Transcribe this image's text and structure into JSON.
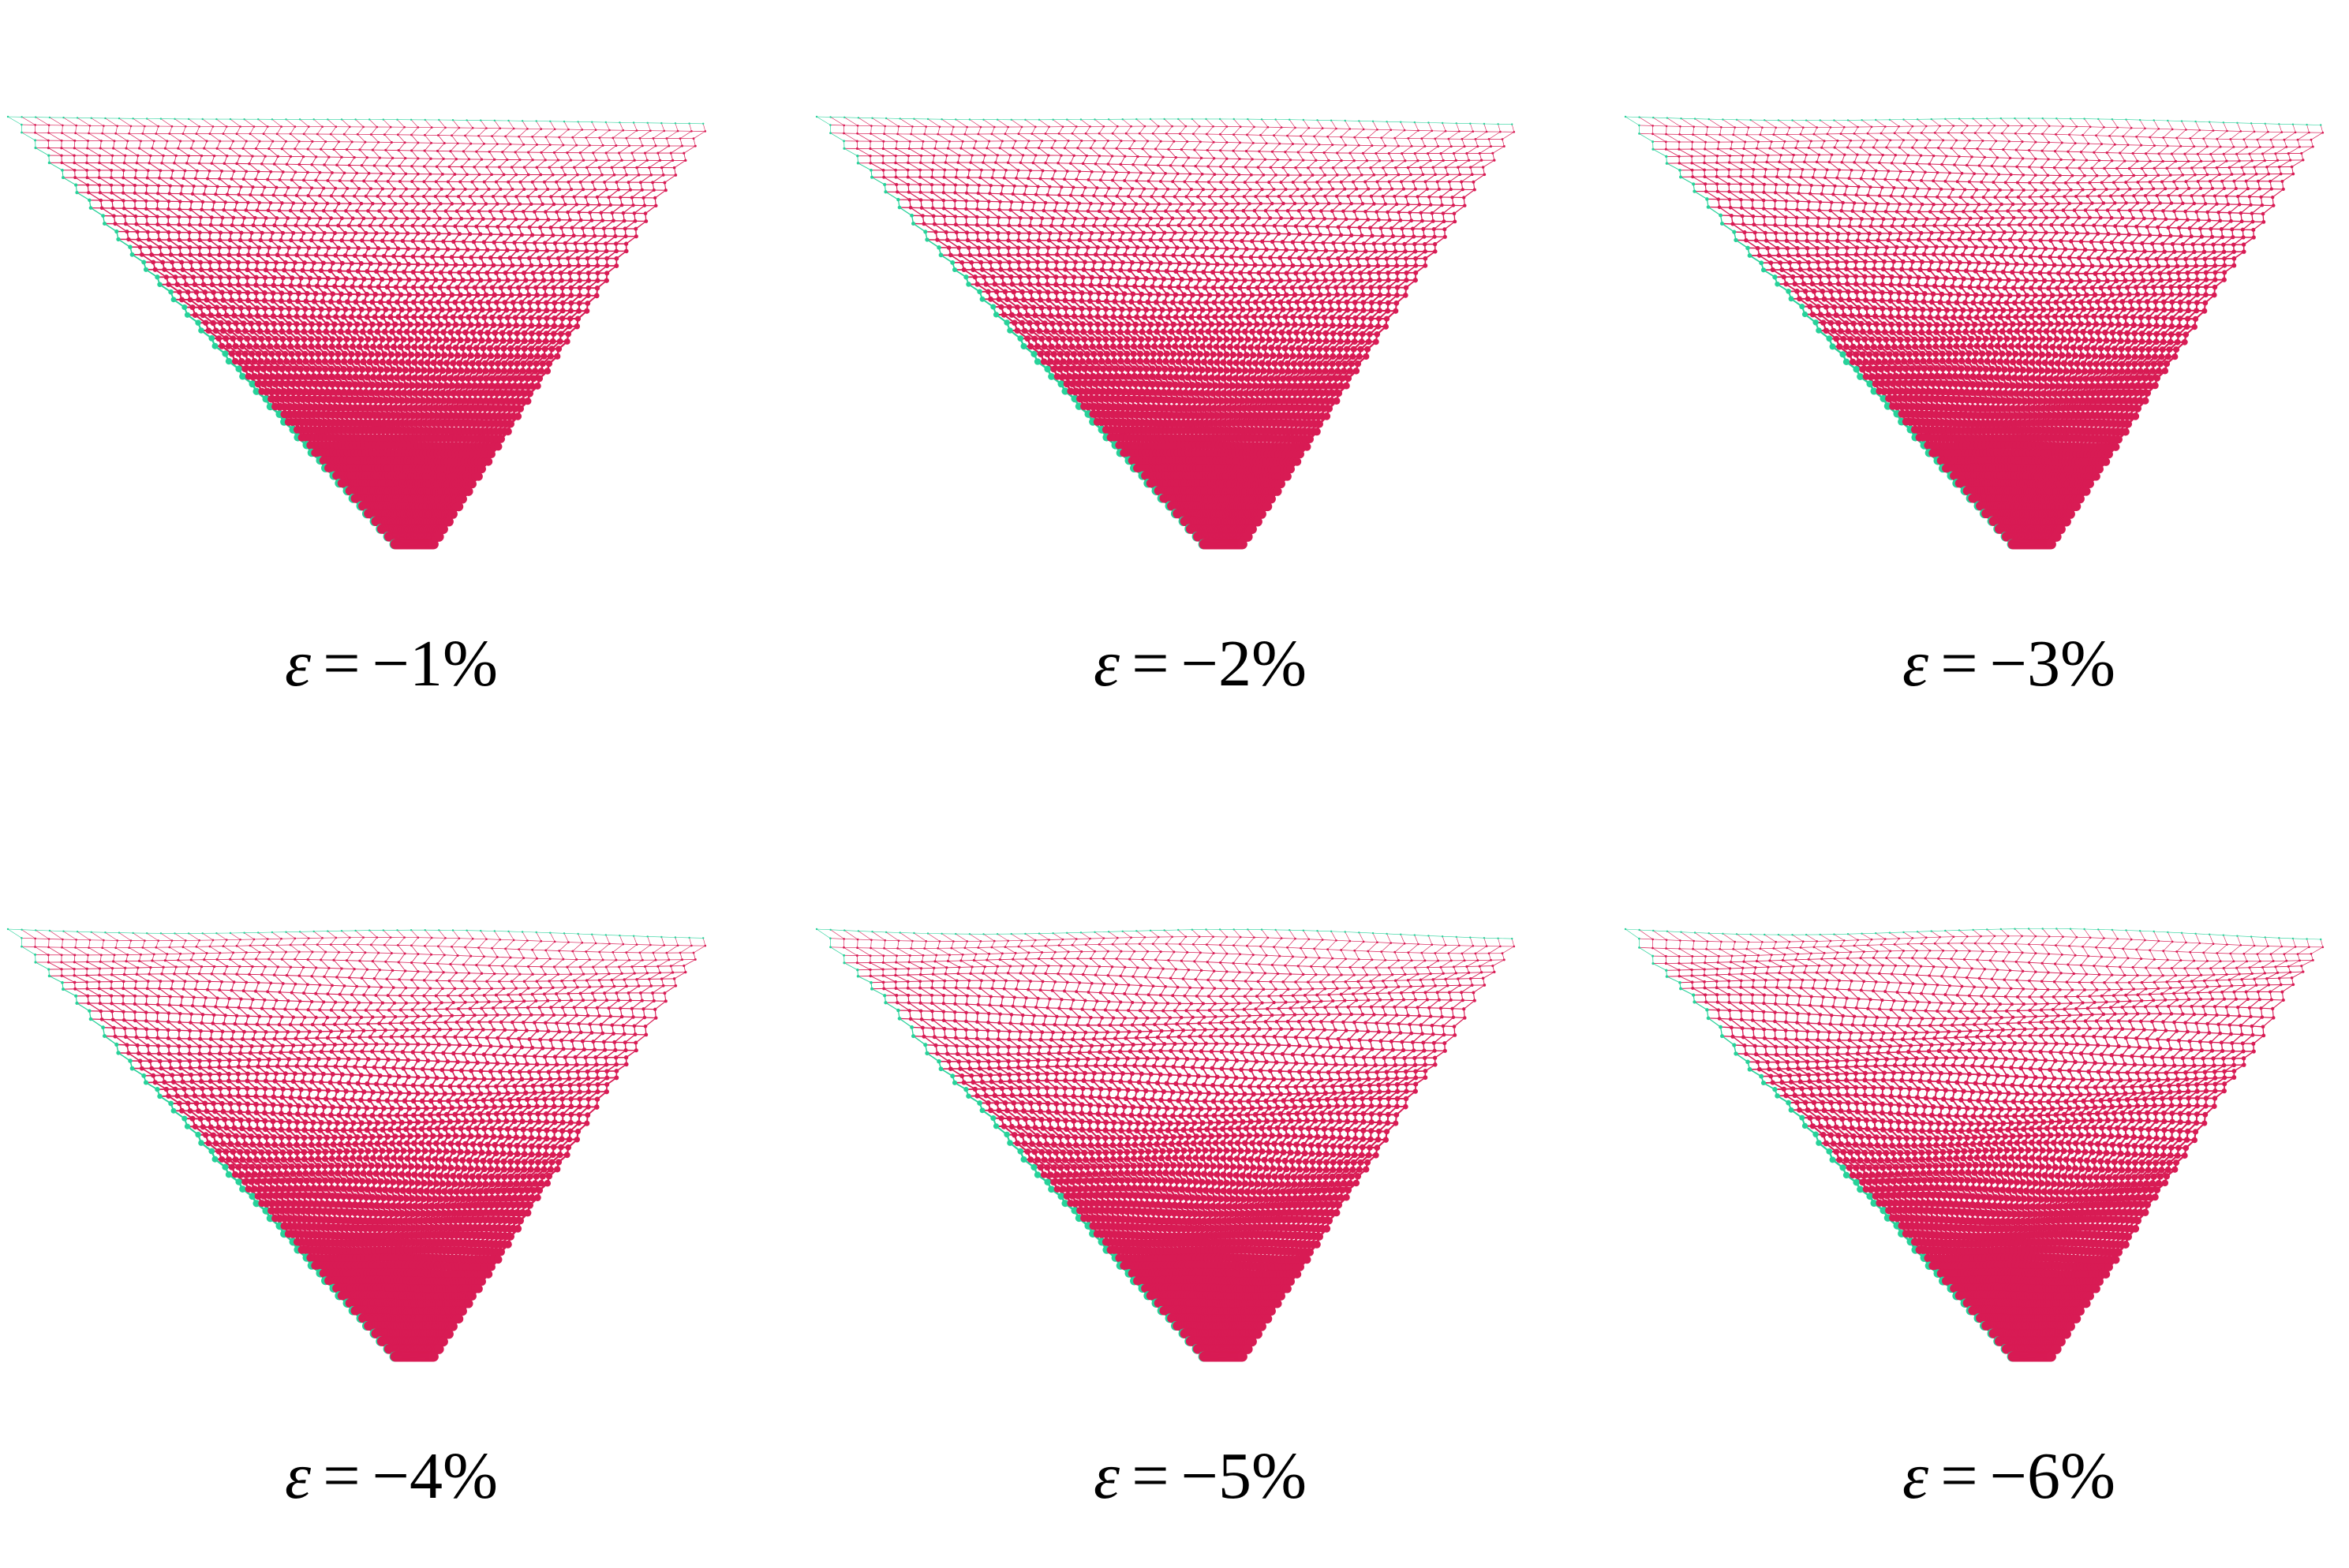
{
  "colors": {
    "background": "#ffffff",
    "interior_atom": "#d81b54",
    "edge_atom": "#27d29a",
    "caption_text": "#000000"
  },
  "panels": [
    {
      "symbol": "ε",
      "equals": "=",
      "value": "−1%",
      "strain_percent": -1
    },
    {
      "symbol": "ε",
      "equals": "=",
      "value": "−2%",
      "strain_percent": -2
    },
    {
      "symbol": "ε",
      "equals": "=",
      "value": "−3%",
      "strain_percent": -3
    },
    {
      "symbol": "ε",
      "equals": "=",
      "value": "−4%",
      "strain_percent": -4
    },
    {
      "symbol": "ε",
      "equals": "=",
      "value": "−5%",
      "strain_percent": -5
    },
    {
      "symbol": "ε",
      "equals": "=",
      "value": "−6%",
      "strain_percent": -6
    }
  ]
}
